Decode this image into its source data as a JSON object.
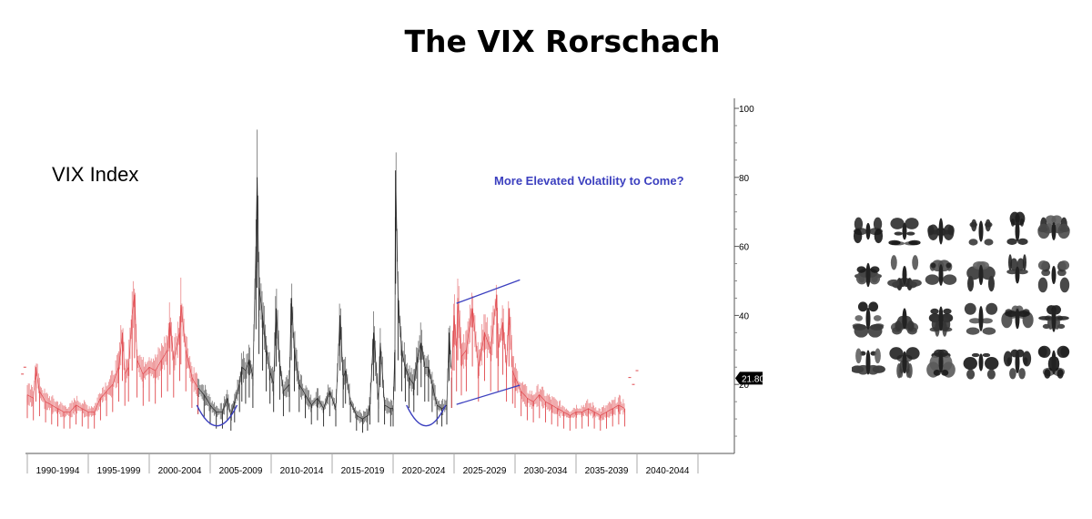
{
  "title": "The VIX Rorschach",
  "chart_data": {
    "type": "line",
    "title": "The VIX Rorschach",
    "series_label": "VIX Index",
    "annotation": "More Elevated Volatility to Come?",
    "x_categories": [
      "1990-1994",
      "1995-1999",
      "2000-2004",
      "2005-2009",
      "2010-2014",
      "2015-2019",
      "2020-2024",
      "2025-2029",
      "2030-2034",
      "2035-2039",
      "2040-2044"
    ],
    "y_ticks": [
      20,
      40,
      60,
      80,
      100
    ],
    "ylim": [
      0,
      103
    ],
    "last_value_label": "21.80",
    "grid": false,
    "colors": {
      "actual": "#222222",
      "projection": "#e0474c",
      "annotation": "#3b3fbf",
      "axis": "#888888"
    },
    "series": [
      {
        "name": "",
        "color": "#222222",
        "x": [
          2004.0,
          2004.5,
          2005.0,
          2005.5,
          2006.0,
          2006.4,
          2006.7,
          2007.0,
          2007.4,
          2007.6,
          2007.9,
          2008.2,
          2008.5,
          2008.75,
          2008.85,
          2009.0,
          2009.3,
          2009.6,
          2009.9,
          2010.2,
          2010.4,
          2010.7,
          2011.0,
          2011.5,
          2011.65,
          2011.9,
          2012.3,
          2012.8,
          2013.3,
          2013.8,
          2014.3,
          2014.8,
          2015.3,
          2015.65,
          2015.9,
          2016.1,
          2016.5,
          2017.0,
          2017.5,
          2017.9,
          2018.1,
          2018.4,
          2018.8,
          2018.95,
          2019.3,
          2019.8,
          2020.0,
          2020.15,
          2020.2,
          2020.4,
          2020.7,
          2021.0,
          2021.3,
          2021.7,
          2022.0,
          2022.3,
          2022.6,
          2022.9,
          2023.2,
          2023.6,
          2024.0,
          2024.4,
          2024.6,
          2024.8
        ],
        "values": [
          19,
          17,
          14,
          12,
          12,
          16,
          11,
          15,
          20,
          25,
          24,
          27,
          22,
          60,
          80,
          48,
          40,
          30,
          24,
          20,
          42,
          26,
          18,
          20,
          45,
          30,
          20,
          17,
          14,
          16,
          13,
          18,
          13,
          40,
          22,
          24,
          15,
          11,
          10,
          11,
          14,
          35,
          15,
          32,
          14,
          13,
          13,
          30,
          82,
          45,
          30,
          25,
          22,
          20,
          28,
          32,
          25,
          25,
          20,
          14,
          13,
          14,
          35,
          22
        ]
      },
      {
        "name": "",
        "color": "#e0474c",
        "x": [
          1990.0,
          1990.5,
          1990.7,
          1991.0,
          1991.5,
          1992.0,
          1992.5,
          1993.0,
          1993.5,
          1994.0,
          1994.5,
          1995.0,
          1995.5,
          1996.0,
          1996.5,
          1997.0,
          1997.5,
          1997.8,
          1998.0,
          1998.3,
          1998.6,
          1998.8,
          1999.0,
          1999.5,
          2000.0,
          2000.5,
          2001.0,
          2001.5,
          2001.7,
          2002.0,
          2002.5,
          2002.6,
          2003.0,
          2003.5,
          2004.0
        ],
        "values": [
          17,
          16,
          25,
          18,
          15,
          14,
          13,
          12,
          12,
          14,
          13,
          12,
          12,
          16,
          18,
          20,
          25,
          35,
          23,
          25,
          40,
          46,
          27,
          23,
          25,
          24,
          27,
          30,
          38,
          27,
          35,
          43,
          30,
          22,
          19
        ]
      },
      {
        "name": "",
        "color": "#e0474c",
        "x": [
          2024.8,
          2025.0,
          2025.2,
          2025.3,
          2025.6,
          2026.0,
          2026.5,
          2027.0,
          2027.5,
          2028.0,
          2028.5,
          2028.6,
          2029.0,
          2029.3,
          2029.5,
          2029.8,
          2030.0,
          2030.5,
          2031.0,
          2031.5,
          2032.0,
          2032.5,
          2033.0,
          2033.5,
          2034.0,
          2034.5,
          2035.0,
          2035.5,
          2036.0,
          2036.5,
          2037.0,
          2037.5,
          2038.0,
          2038.5,
          2039.0
        ],
        "values": [
          22,
          40,
          30,
          45,
          28,
          30,
          42,
          25,
          35,
          30,
          46,
          30,
          38,
          25,
          42,
          24,
          22,
          18,
          16,
          15,
          17,
          15,
          14,
          13,
          12,
          11,
          12,
          12,
          13,
          12,
          11,
          12,
          13,
          14,
          13
        ]
      }
    ],
    "scatter_points": [
      {
        "x": 1989.6,
        "y": 23
      },
      {
        "x": 1989.8,
        "y": 25
      },
      {
        "x": 2039.4,
        "y": 22
      },
      {
        "x": 2039.7,
        "y": 20
      },
      {
        "x": 2040.0,
        "y": 24
      }
    ],
    "trend_lines": [
      {
        "name": "upper-channel",
        "x": [
          2025.2,
          2030.4
        ],
        "values": [
          43.5,
          50.3
        ]
      },
      {
        "name": "lower-channel",
        "x": [
          2025.2,
          2030.4
        ],
        "values": [
          14.2,
          19.8
        ]
      }
    ],
    "arcs": [
      {
        "name": "arc-2006",
        "x": [
          2003.9,
          2007.2
        ],
        "y_end": 14,
        "y_bottom": 8
      },
      {
        "name": "arc-2023",
        "x": [
          2021.1,
          2024.3
        ],
        "y_end": 14,
        "y_bottom": 8
      }
    ]
  },
  "inkblot_grid": {
    "rows": 4,
    "cols": 6,
    "item": "inkblot"
  }
}
